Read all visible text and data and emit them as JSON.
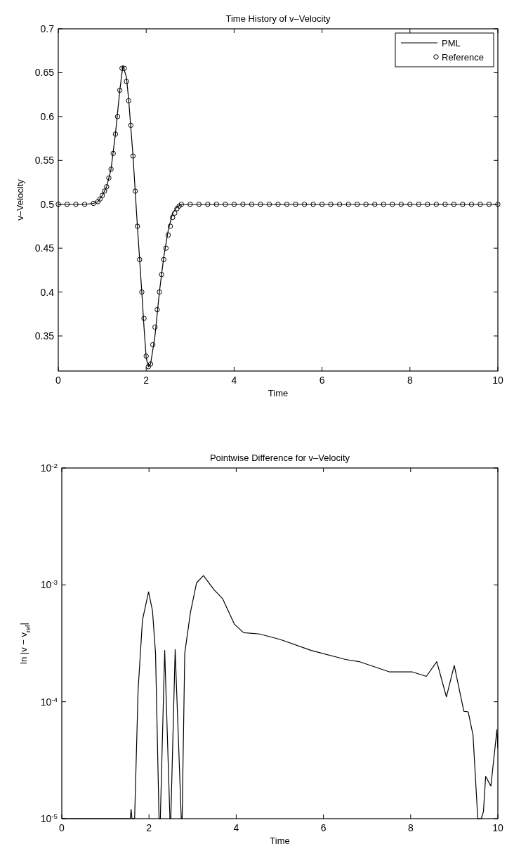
{
  "chart_data": [
    {
      "type": "line",
      "title": "Time History of v–Velocity",
      "xlabel": "Time",
      "ylabel": "v–Velocity",
      "xlim": [
        0,
        10
      ],
      "xticks": [
        0,
        2,
        4,
        6,
        8,
        10
      ],
      "ylim": [
        0.31,
        0.7
      ],
      "yticks": [
        0.35,
        0.4,
        0.45,
        0.5,
        0.55,
        0.6,
        0.65,
        0.7
      ],
      "legend": "top right",
      "grid": false,
      "series": [
        {
          "name": "PML",
          "color": "#000000",
          "marker": "none",
          "line_style": "solid",
          "x": [
            0,
            0.6,
            0.8,
            0.9,
            1.0,
            1.1,
            1.2,
            1.3,
            1.4,
            1.47,
            1.55,
            1.6,
            1.7,
            1.8,
            1.9,
            1.95,
            2.0,
            2.05,
            2.1,
            2.2,
            2.3,
            2.4,
            2.5,
            2.6,
            2.7,
            2.8,
            3.0,
            10
          ],
          "values": [
            0.5,
            0.5,
            0.501,
            0.503,
            0.51,
            0.52,
            0.54,
            0.58,
            0.63,
            0.658,
            0.645,
            0.62,
            0.555,
            0.475,
            0.4,
            0.36,
            0.325,
            0.315,
            0.318,
            0.35,
            0.4,
            0.44,
            0.47,
            0.49,
            0.497,
            0.5,
            0.5,
            0.5
          ]
        },
        {
          "name": "Reference",
          "type": "scatter",
          "color": "#000000",
          "marker": "circle",
          "x": [
            0,
            0.2,
            0.4,
            0.6,
            0.8,
            0.9,
            0.95,
            1.0,
            1.05,
            1.1,
            1.15,
            1.2,
            1.25,
            1.3,
            1.35,
            1.4,
            1.45,
            1.5,
            1.55,
            1.6,
            1.65,
            1.7,
            1.75,
            1.8,
            1.85,
            1.9,
            1.95,
            2.0,
            2.05,
            2.1,
            2.15,
            2.2,
            2.25,
            2.3,
            2.35,
            2.4,
            2.45,
            2.5,
            2.55,
            2.6,
            2.65,
            2.7,
            2.75,
            2.8,
            3.0,
            3.2,
            3.4,
            3.6,
            3.8,
            4.0,
            4.2,
            4.4,
            4.6,
            4.8,
            5.0,
            5.2,
            5.4,
            5.6,
            5.8,
            6.0,
            6.2,
            6.4,
            6.6,
            6.8,
            7.0,
            7.2,
            7.4,
            7.6,
            7.8,
            8.0,
            8.2,
            8.4,
            8.6,
            8.8,
            9.0,
            9.2,
            9.4,
            9.6,
            9.8,
            10.0
          ],
          "values": [
            0.5,
            0.5,
            0.5,
            0.5,
            0.501,
            0.503,
            0.506,
            0.51,
            0.515,
            0.52,
            0.53,
            0.54,
            0.558,
            0.58,
            0.6,
            0.63,
            0.655,
            0.655,
            0.64,
            0.618,
            0.59,
            0.555,
            0.515,
            0.475,
            0.437,
            0.4,
            0.37,
            0.327,
            0.315,
            0.318,
            0.34,
            0.36,
            0.38,
            0.4,
            0.42,
            0.437,
            0.45,
            0.465,
            0.475,
            0.485,
            0.49,
            0.495,
            0.498,
            0.5,
            0.5,
            0.5,
            0.5,
            0.5,
            0.5,
            0.5,
            0.5,
            0.5,
            0.5,
            0.5,
            0.5,
            0.5,
            0.5,
            0.5,
            0.5,
            0.5,
            0.5,
            0.5,
            0.5,
            0.5,
            0.5,
            0.5,
            0.5,
            0.5,
            0.5,
            0.5,
            0.5,
            0.5,
            0.5,
            0.5,
            0.5,
            0.5,
            0.5,
            0.5,
            0.5,
            0.5
          ]
        }
      ]
    },
    {
      "type": "line",
      "title": "Pointwise Difference for v–Velocity",
      "xlabel": "Time",
      "ylabel": "ln |v − v$_{ref}$|",
      "xlim": [
        0,
        10
      ],
      "xticks": [
        0,
        2,
        4,
        6,
        8,
        10
      ],
      "ylim": [
        1e-05,
        0.01
      ],
      "log": "y",
      "yticks": [
        {
          "value": 1e-05,
          "label": "10$^{-5}$"
        },
        {
          "value": 0.0001,
          "label": "10$^{-4}$"
        },
        {
          "value": 0.001,
          "label": "10$^{-3}$"
        },
        {
          "value": 0.01,
          "label": "10$^{-2}$"
        }
      ],
      "grid": false,
      "legend": false,
      "series": [
        {
          "color": "#000000",
          "line_style": "solid",
          "marker": "none",
          "x": [
            0,
            1.57,
            1.59,
            1.61,
            1.67,
            1.75,
            1.85,
            1.99,
            2.08,
            2.15,
            2.23,
            2.26,
            2.36,
            2.48,
            2.5,
            2.6,
            2.74,
            2.76,
            2.82,
            2.95,
            3.09,
            3.25,
            3.49,
            3.69,
            3.96,
            4.17,
            4.54,
            5.02,
            5.72,
            6.51,
            6.83,
            7.52,
            8.04,
            8.36,
            8.6,
            8.82,
            9.0,
            9.22,
            9.32,
            9.43,
            9.54,
            9.62,
            9.67,
            9.72,
            9.84,
            9.98,
            10.0
          ],
          "values": [
            1e-05,
            1e-05,
            1.2e-05,
            1e-05,
            1e-05,
            0.000126,
            0.0005,
            0.00087,
            0.0006,
            0.00026,
            1e-05,
            1e-05,
            0.000275,
            1e-05,
            1e-05,
            0.00028,
            1e-05,
            1e-05,
            0.00026,
            0.00058,
            0.00104,
            0.0012,
            0.00091,
            0.00076,
            0.00046,
            0.00039,
            0.00038,
            0.00034,
            0.000275,
            0.00023,
            0.00022,
            0.00018,
            0.00018,
            0.000165,
            0.00022,
            0.00011,
            0.000205,
            8.3e-05,
            8.2e-05,
            5.2e-05,
            1e-05,
            1e-05,
            1.15e-05,
            2.3e-05,
            1.9e-05,
            5.8e-05,
            4e-05
          ]
        }
      ]
    }
  ]
}
